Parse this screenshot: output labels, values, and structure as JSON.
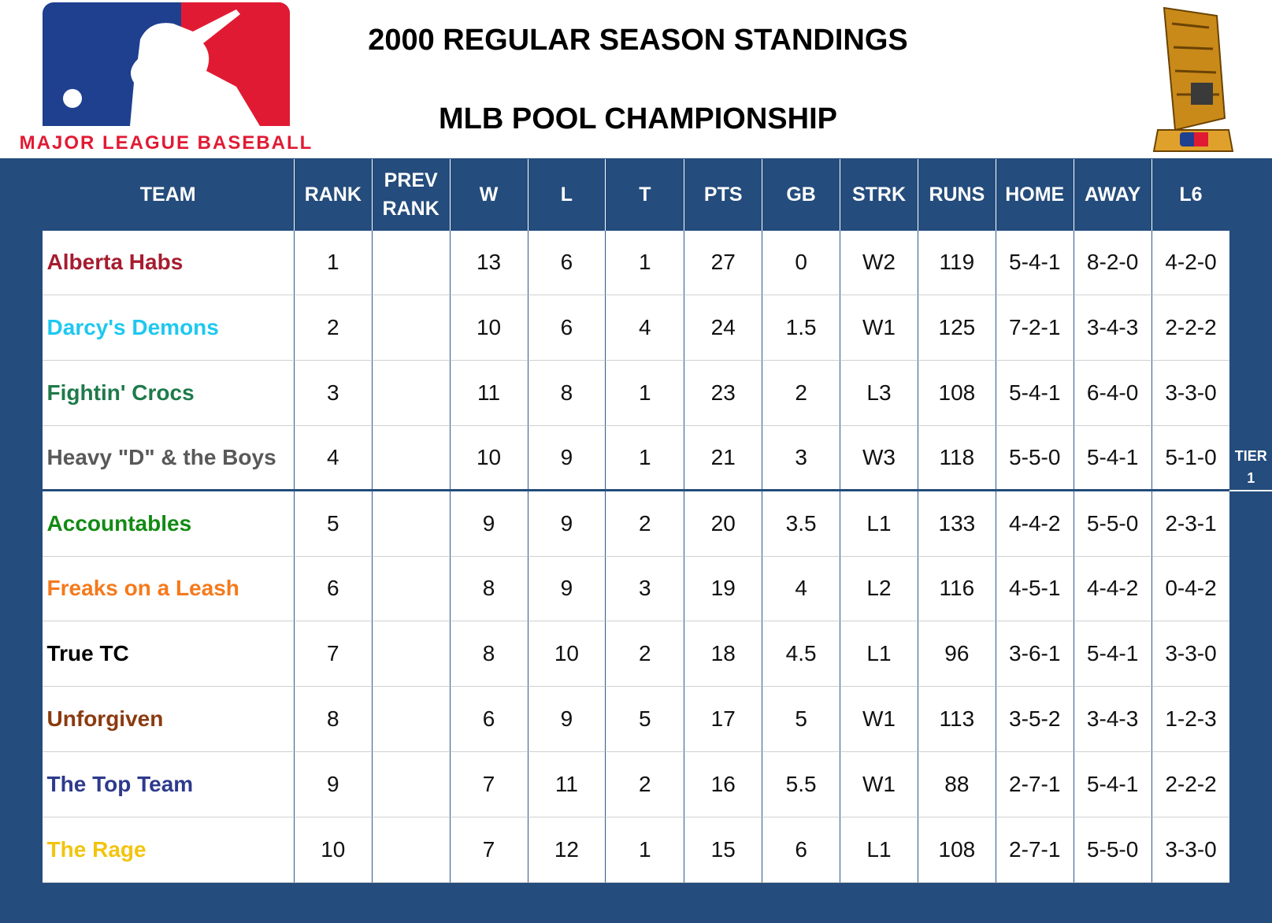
{
  "header": {
    "title": "2000 REGULAR SEASON STANDINGS",
    "subtitle": "MLB POOL CHAMPIONSHIP",
    "logo_text": "MAJOR LEAGUE BASEBALL"
  },
  "table": {
    "columns": [
      "TEAM",
      "RANK",
      "PREV RANK",
      "W",
      "L",
      "T",
      "PTS",
      "GB",
      "STRK",
      "RUNS",
      "HOME",
      "AWAY",
      "L6"
    ],
    "rows": [
      {
        "team": "Alberta Habs",
        "color": "#a61c2e",
        "rank": 1,
        "w": 13,
        "l": 6,
        "t": 1,
        "pts": 27,
        "gb": 0,
        "strk": "W2",
        "runs": 119,
        "home": "5-4-1",
        "away": "8-2-0",
        "l6": "4-2-0"
      },
      {
        "team": "Darcy's Demons",
        "color": "#1ec8f0",
        "rank": 2,
        "w": 10,
        "l": 6,
        "t": 4,
        "pts": 24,
        "gb": 1.5,
        "strk": "W1",
        "runs": 125,
        "home": "7-2-1",
        "away": "3-4-3",
        "l6": "2-2-2"
      },
      {
        "team": "Fightin' Crocs",
        "color": "#1e7a4a",
        "rank": 3,
        "w": 11,
        "l": 8,
        "t": 1,
        "pts": 23,
        "gb": 2,
        "strk": "L3",
        "runs": 108,
        "home": "5-4-1",
        "away": "6-4-0",
        "l6": "3-3-0"
      },
      {
        "team": "Heavy \"D\" & the Boys",
        "color": "#595959",
        "rank": 4,
        "w": 10,
        "l": 9,
        "t": 1,
        "pts": 21,
        "gb": 3,
        "strk": "W3",
        "runs": 118,
        "home": "5-5-0",
        "away": "5-4-1",
        "l6": "5-1-0"
      },
      {
        "team": "Accountables",
        "color": "#138a13",
        "rank": 5,
        "w": 9,
        "l": 9,
        "t": 2,
        "pts": 20,
        "gb": 3.5,
        "strk": "L1",
        "runs": 133,
        "home": "4-4-2",
        "away": "5-5-0",
        "l6": "2-3-1"
      },
      {
        "team": "Freaks on a Leash",
        "color": "#f57a1c",
        "rank": 6,
        "w": 8,
        "l": 9,
        "t": 3,
        "pts": 19,
        "gb": 4,
        "strk": "L2",
        "runs": 116,
        "home": "4-5-1",
        "away": "4-4-2",
        "l6": "0-4-2"
      },
      {
        "team": "True TC",
        "color": "#000000",
        "rank": 7,
        "w": 8,
        "l": 10,
        "t": 2,
        "pts": 18,
        "gb": 4.5,
        "strk": "L1",
        "runs": 96,
        "home": "3-6-1",
        "away": "5-4-1",
        "l6": "3-3-0"
      },
      {
        "team": "Unforgiven",
        "color": "#8b3a10",
        "rank": 8,
        "w": 6,
        "l": 9,
        "t": 5,
        "pts": 17,
        "gb": 5,
        "strk": "W1",
        "runs": 113,
        "home": "3-5-2",
        "away": "3-4-3",
        "l6": "1-2-3"
      },
      {
        "team": "The Top Team",
        "color": "#2e3a8c",
        "rank": 9,
        "w": 7,
        "l": 11,
        "t": 2,
        "pts": 16,
        "gb": 5.5,
        "strk": "W1",
        "runs": 88,
        "home": "2-7-1",
        "away": "5-4-1",
        "l6": "2-2-2"
      },
      {
        "team": "The Rage",
        "color": "#f2c40f",
        "rank": 10,
        "w": 7,
        "l": 12,
        "t": 1,
        "pts": 15,
        "gb": 6,
        "strk": "L1",
        "runs": 108,
        "home": "2-7-1",
        "away": "5-5-0",
        "l6": "3-3-0"
      }
    ]
  },
  "tier": {
    "label": "TIER",
    "number": 1
  }
}
